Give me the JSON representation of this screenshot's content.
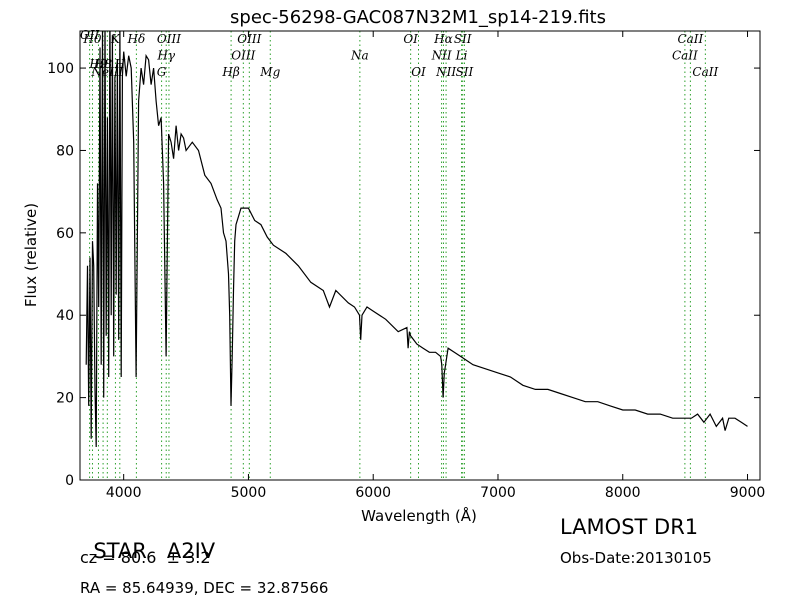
{
  "chart_data": {
    "type": "line",
    "title": "spec-56298-GAC087N32M1_sp14-219.fits",
    "xlabel": "Wavelength (Å)",
    "ylabel": "Flux (relative)",
    "xlim": [
      3650,
      9100
    ],
    "ylim": [
      0,
      109
    ],
    "xticks": [
      4000,
      5000,
      6000,
      7000,
      8000,
      9000
    ],
    "yticks": [
      0,
      20,
      40,
      60,
      80,
      100
    ],
    "grid": false,
    "line_color": "#000000",
    "marker_line_color": "#2ca02c",
    "spectrum": {
      "x": [
        3700,
        3710,
        3720,
        3730,
        3740,
        3750,
        3760,
        3770,
        3780,
        3790,
        3800,
        3810,
        3820,
        3830,
        3840,
        3850,
        3860,
        3870,
        3880,
        3890,
        3900,
        3910,
        3920,
        3930,
        3940,
        3950,
        3960,
        3970,
        3980,
        3990,
        4000,
        4020,
        4040,
        4060,
        4080,
        4100,
        4120,
        4140,
        4160,
        4180,
        4200,
        4220,
        4240,
        4260,
        4280,
        4300,
        4320,
        4340,
        4360,
        4380,
        4400,
        4420,
        4440,
        4460,
        4480,
        4500,
        4550,
        4600,
        4650,
        4700,
        4750,
        4780,
        4800,
        4820,
        4840,
        4850,
        4860,
        4870,
        4880,
        4890,
        4900,
        4920,
        4940,
        4960,
        5000,
        5050,
        5100,
        5150,
        5200,
        5300,
        5400,
        5500,
        5600,
        5650,
        5700,
        5800,
        5850,
        5890,
        5900,
        5910,
        5950,
        6000,
        6100,
        6200,
        6270,
        6280,
        6290,
        6300,
        6350,
        6400,
        6450,
        6500,
        6540,
        6550,
        6560,
        6570,
        6580,
        6600,
        6650,
        6700,
        6800,
        6900,
        7000,
        7100,
        7200,
        7300,
        7400,
        7500,
        7600,
        7700,
        7800,
        7900,
        8000,
        8100,
        8200,
        8300,
        8400,
        8500,
        8550,
        8600,
        8650,
        8700,
        8750,
        8800,
        8820,
        8850,
        8900,
        8950,
        9000
      ],
      "y": [
        28,
        52,
        18,
        54,
        10,
        58,
        52,
        22,
        8,
        72,
        42,
        105,
        28,
        110,
        20,
        112,
        35,
        88,
        25,
        115,
        40,
        108,
        30,
        98,
        45,
        102,
        34,
        110,
        25,
        98,
        104,
        98,
        103,
        100,
        82,
        25,
        92,
        100,
        96,
        103,
        102,
        96,
        100,
        92,
        86,
        88,
        72,
        30,
        84,
        82,
        78,
        86,
        80,
        84,
        83,
        80,
        82,
        80,
        74,
        72,
        68,
        66,
        60,
        58,
        50,
        40,
        18,
        30,
        46,
        58,
        62,
        64,
        66,
        66,
        66,
        63,
        62,
        59,
        57,
        55,
        52,
        48,
        46,
        42,
        46,
        43,
        42,
        40,
        34,
        40,
        42,
        41,
        39,
        36,
        37,
        32,
        36,
        35,
        33,
        32,
        31,
        31,
        30,
        28,
        20,
        26,
        28,
        32,
        31,
        30,
        28,
        27,
        26,
        25,
        23,
        22,
        22,
        21,
        20,
        19,
        19,
        18,
        17,
        17,
        16,
        16,
        15,
        15,
        15,
        16,
        14,
        16,
        13,
        15,
        12,
        15,
        15,
        14,
        13
      ]
    },
    "lines": [
      {
        "wl": 3727,
        "label": "OII",
        "label_y": 108,
        "label2": null
      },
      {
        "wl": 3750,
        "label": "H0",
        "label_y": 107,
        "label2": null
      },
      {
        "wl": 3798,
        "label": "H9",
        "label_y": 101,
        "label2": null
      },
      {
        "wl": 3835,
        "label": "H8",
        "label_y": 101,
        "label2": null
      },
      {
        "wl": 3869,
        "label": "NeIII",
        "label_y": 99,
        "label2": null
      },
      {
        "wl": 3934,
        "label": "K",
        "label_y": 107,
        "label2": null
      },
      {
        "wl": 3969,
        "label": "H",
        "label_y": 101,
        "label2": null
      },
      {
        "wl": 4102,
        "label": "Hδ",
        "label_y": 107,
        "label2": null
      },
      {
        "wl": 4304,
        "label": "G",
        "label_y": 99,
        "label2": null
      },
      {
        "wl": 4341,
        "label": "Hγ",
        "label_y": 103,
        "label2": null
      },
      {
        "wl": 4363,
        "label": "OIII",
        "label_y": 107,
        "label2": null
      },
      {
        "wl": 4861,
        "label": "Hβ",
        "label_y": 99,
        "label2": null
      },
      {
        "wl": 4959,
        "label": "OIII",
        "label_y": 103,
        "label2": null
      },
      {
        "wl": 5007,
        "label": "OIII",
        "label_y": 107,
        "label2": null
      },
      {
        "wl": 5175,
        "label": "Mg",
        "label_y": 99,
        "label2": null
      },
      {
        "wl": 5893,
        "label": "Na",
        "label_y": 103,
        "label2": null
      },
      {
        "wl": 6300,
        "label": "OI",
        "label_y": 107,
        "label2": null
      },
      {
        "wl": 6363,
        "label": "OI",
        "label_y": 99,
        "label2": null
      },
      {
        "wl": 6548,
        "label": "NII",
        "label_y": 103,
        "label2": null
      },
      {
        "wl": 6563,
        "label": "Hα",
        "label_y": 107,
        "label2": null
      },
      {
        "wl": 6584,
        "label": "NII",
        "label_y": 99,
        "label2": null
      },
      {
        "wl": 6717,
        "label": "SII",
        "label_y": 107,
        "label2": null
      },
      {
        "wl": 6708,
        "label": "Li",
        "label_y": 103,
        "label2": null
      },
      {
        "wl": 6731,
        "label": "SII",
        "label_y": 99,
        "label2": null
      },
      {
        "wl": 8498,
        "label": "CaII",
        "label_y": 103,
        "label2": null
      },
      {
        "wl": 8542,
        "label": "CaII",
        "label_y": 107,
        "label2": null
      },
      {
        "wl": 8662,
        "label": "CaII",
        "label_y": 99,
        "label2": null
      }
    ]
  },
  "info": {
    "class_label": "STAR",
    "subclass": "A2IV",
    "cz": "cz = 80.6  ± 3.2",
    "radec": "RA = 85.64939, DEC = 32.87566",
    "survey": "LAMOST DR1",
    "obs_date": "Obs-Date:20130105"
  }
}
